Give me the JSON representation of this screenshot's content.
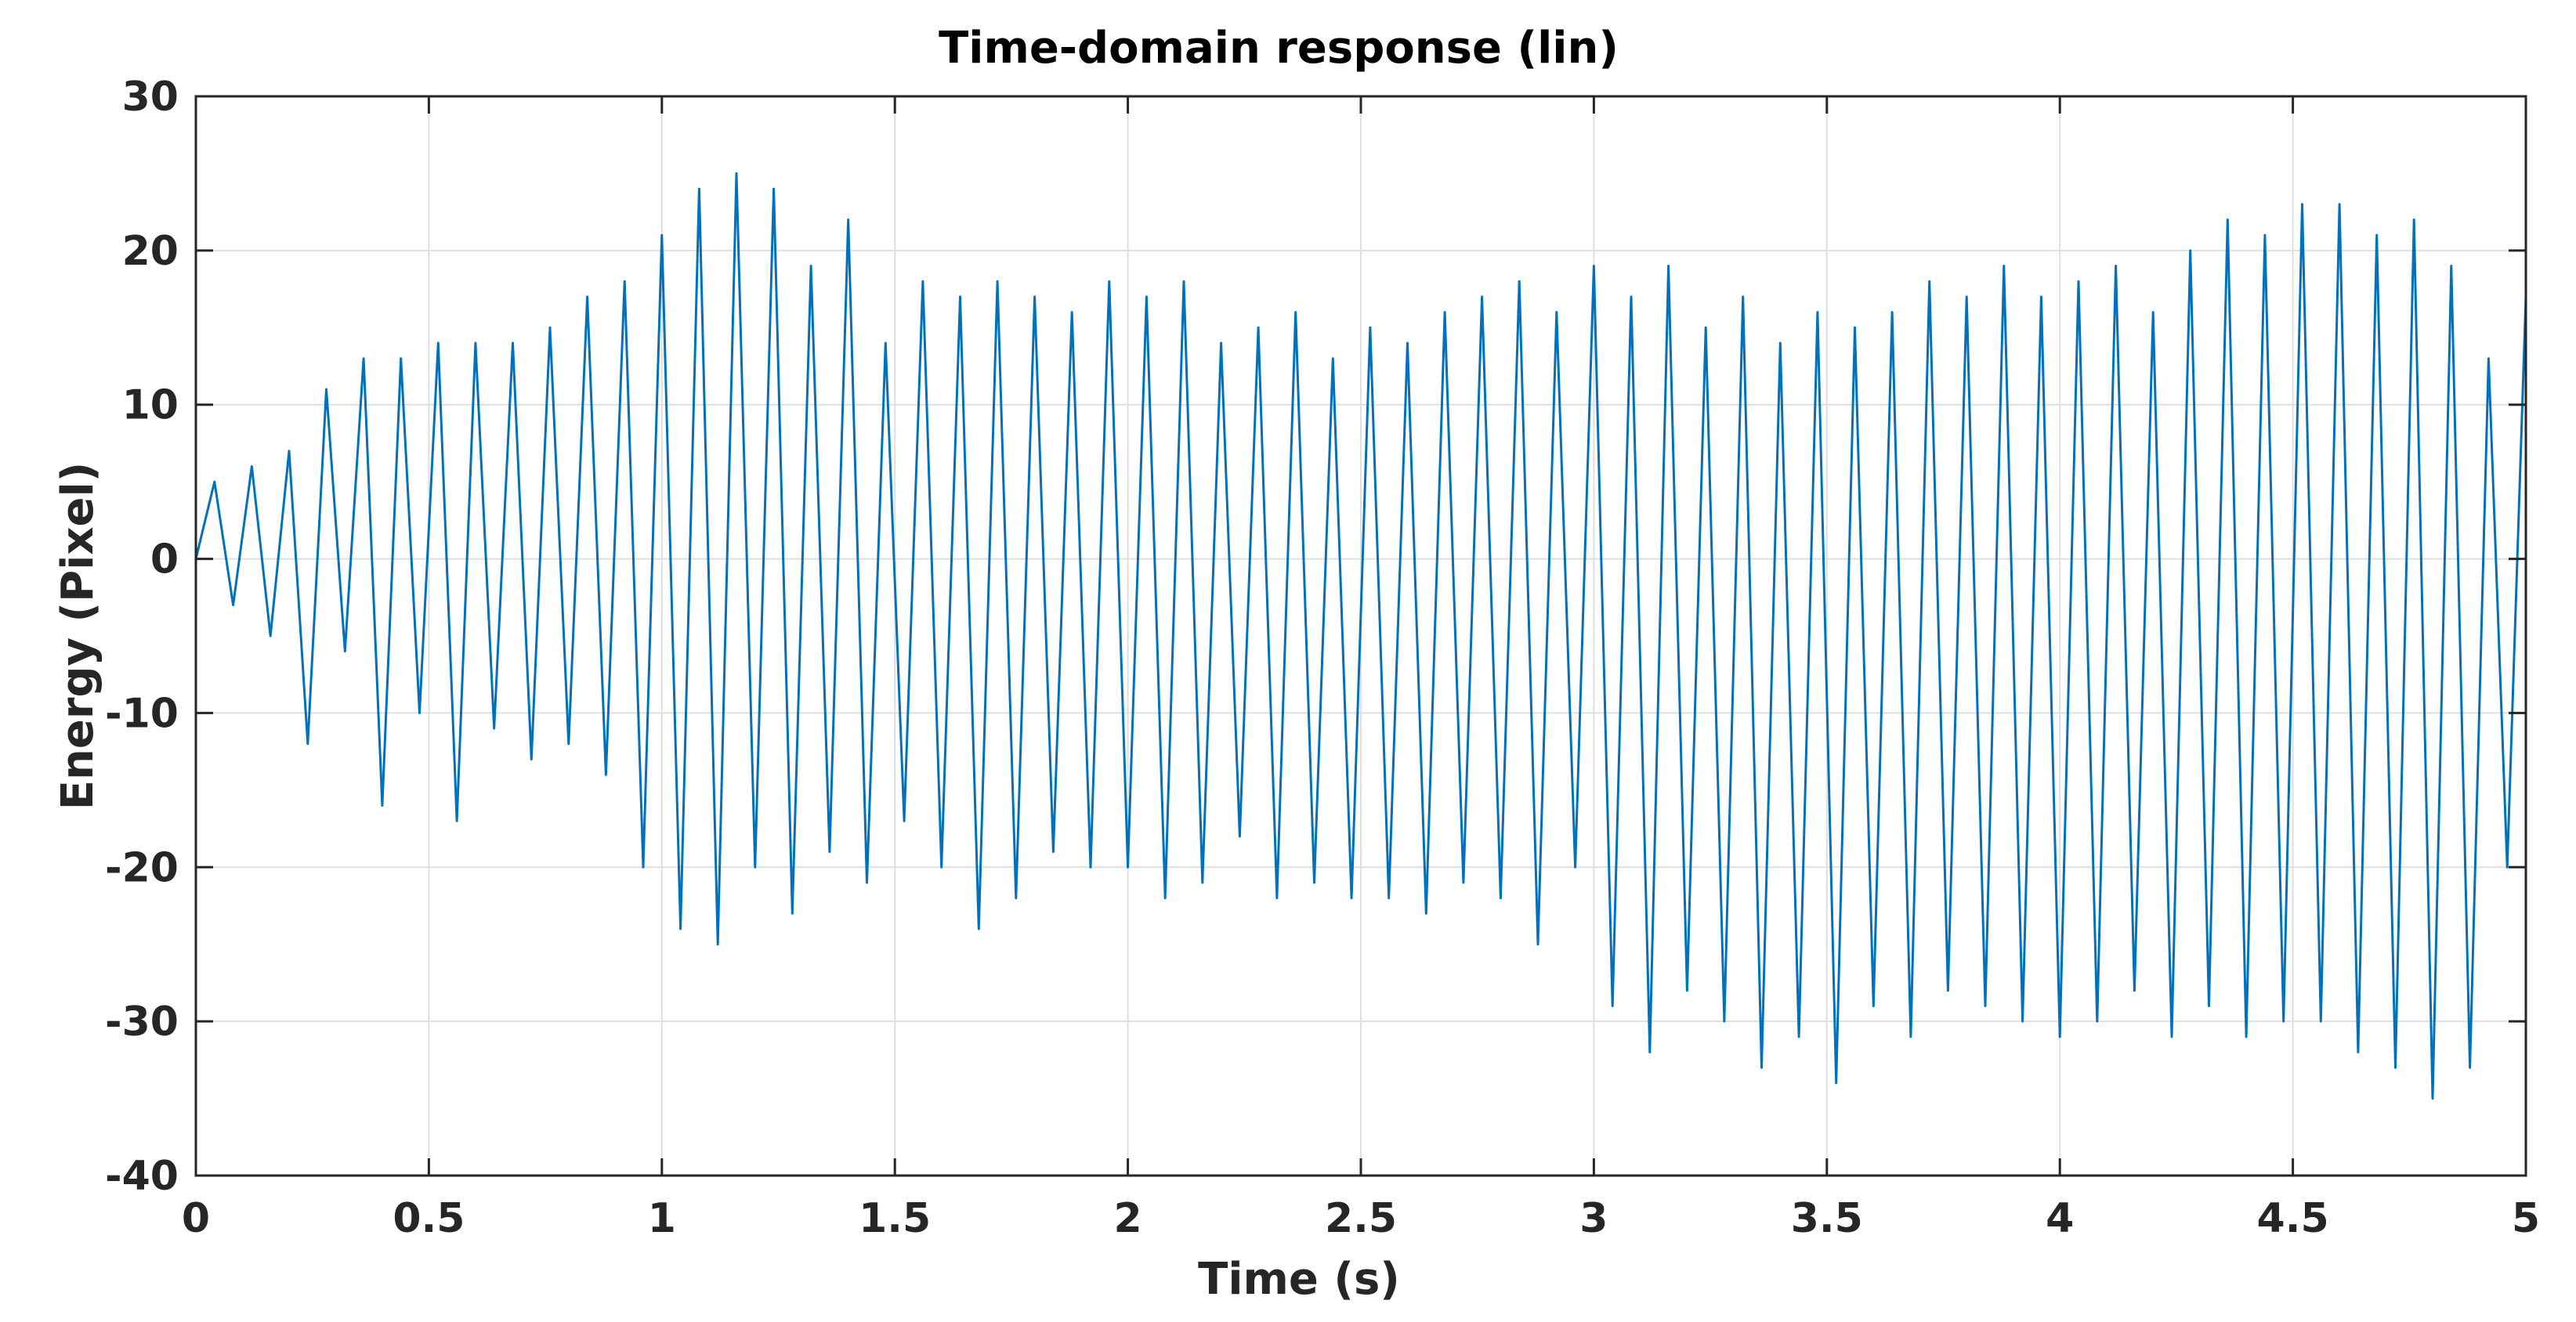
{
  "chart_data": {
    "type": "line",
    "title": "Time-domain response (lin)",
    "xlabel": "Time (s)",
    "ylabel": "Energy (Pixel)",
    "xlim": [
      0,
      5
    ],
    "ylim": [
      -40,
      30
    ],
    "grid": true,
    "xticks": [
      "0",
      "0.5",
      "1",
      "1.5",
      "2",
      "2.5",
      "3",
      "3.5",
      "4",
      "4.5",
      "5"
    ],
    "yticks": [
      "-40",
      "-30",
      "-20",
      "-10",
      "0",
      "10",
      "20",
      "30"
    ],
    "line_color": "#0072BD",
    "series": [
      {
        "x": [
          0.0,
          0.04,
          0.08,
          0.12,
          0.16,
          0.2,
          0.24,
          0.28,
          0.32,
          0.36,
          0.4,
          0.44,
          0.48,
          0.52,
          0.56,
          0.6,
          0.64,
          0.68,
          0.72,
          0.76,
          0.8,
          0.84,
          0.88,
          0.92,
          0.96,
          1.0,
          1.04,
          1.08,
          1.12,
          1.16,
          1.2,
          1.24,
          1.28,
          1.32,
          1.36,
          1.4,
          1.44,
          1.48,
          1.52,
          1.56,
          1.6,
          1.64,
          1.68,
          1.72,
          1.76,
          1.8,
          1.84,
          1.88,
          1.92,
          1.96,
          2.0,
          2.04,
          2.08,
          2.12,
          2.16,
          2.2,
          2.24,
          2.28,
          2.32,
          2.36,
          2.4,
          2.44,
          2.48,
          2.52,
          2.56,
          2.6,
          2.64,
          2.68,
          2.72,
          2.76,
          2.8,
          2.84,
          2.88,
          2.92,
          2.96,
          3.0,
          3.04,
          3.08,
          3.12,
          3.16,
          3.2,
          3.24,
          3.28,
          3.32,
          3.36,
          3.4,
          3.44,
          3.48,
          3.52,
          3.56,
          3.6,
          3.64,
          3.68,
          3.72,
          3.76,
          3.8,
          3.84,
          3.88,
          3.92,
          3.96,
          4.0,
          4.04,
          4.08,
          4.12,
          4.16,
          4.2,
          4.24,
          4.28,
          4.32,
          4.36,
          4.4,
          4.44,
          4.48,
          4.52,
          4.56,
          4.6,
          4.64,
          4.68,
          4.72,
          4.76,
          4.8,
          4.84,
          4.88,
          4.92,
          4.96,
          5.0
        ],
        "values": [
          0,
          5,
          -3,
          6,
          -5,
          7,
          -12,
          11,
          -6,
          13,
          -16,
          13,
          -10,
          14,
          -17,
          14,
          -11,
          14,
          -13,
          15,
          -12,
          17,
          -14,
          18,
          -20,
          21,
          -24,
          24,
          -25,
          25,
          -20,
          24,
          -23,
          19,
          -19,
          22,
          -21,
          14,
          -17,
          18,
          -20,
          17,
          -24,
          18,
          -22,
          17,
          -19,
          16,
          -20,
          18,
          -20,
          17,
          -22,
          18,
          -21,
          14,
          -18,
          15,
          -22,
          16,
          -21,
          13,
          -22,
          15,
          -22,
          14,
          -23,
          16,
          -21,
          17,
          -22,
          18,
          -25,
          16,
          -20,
          19,
          -29,
          17,
          -32,
          19,
          -28,
          15,
          -30,
          17,
          -33,
          14,
          -31,
          16,
          -34,
          15,
          -29,
          16,
          -31,
          18,
          -28,
          17,
          -29,
          19,
          -30,
          17,
          -31,
          18,
          -30,
          19,
          -28,
          16,
          -31,
          20,
          -29,
          22,
          -31,
          21,
          -30,
          23,
          -30,
          23,
          -32,
          21,
          -33,
          22,
          -35,
          19,
          -33,
          13,
          -20,
          17
        ]
      }
    ]
  }
}
